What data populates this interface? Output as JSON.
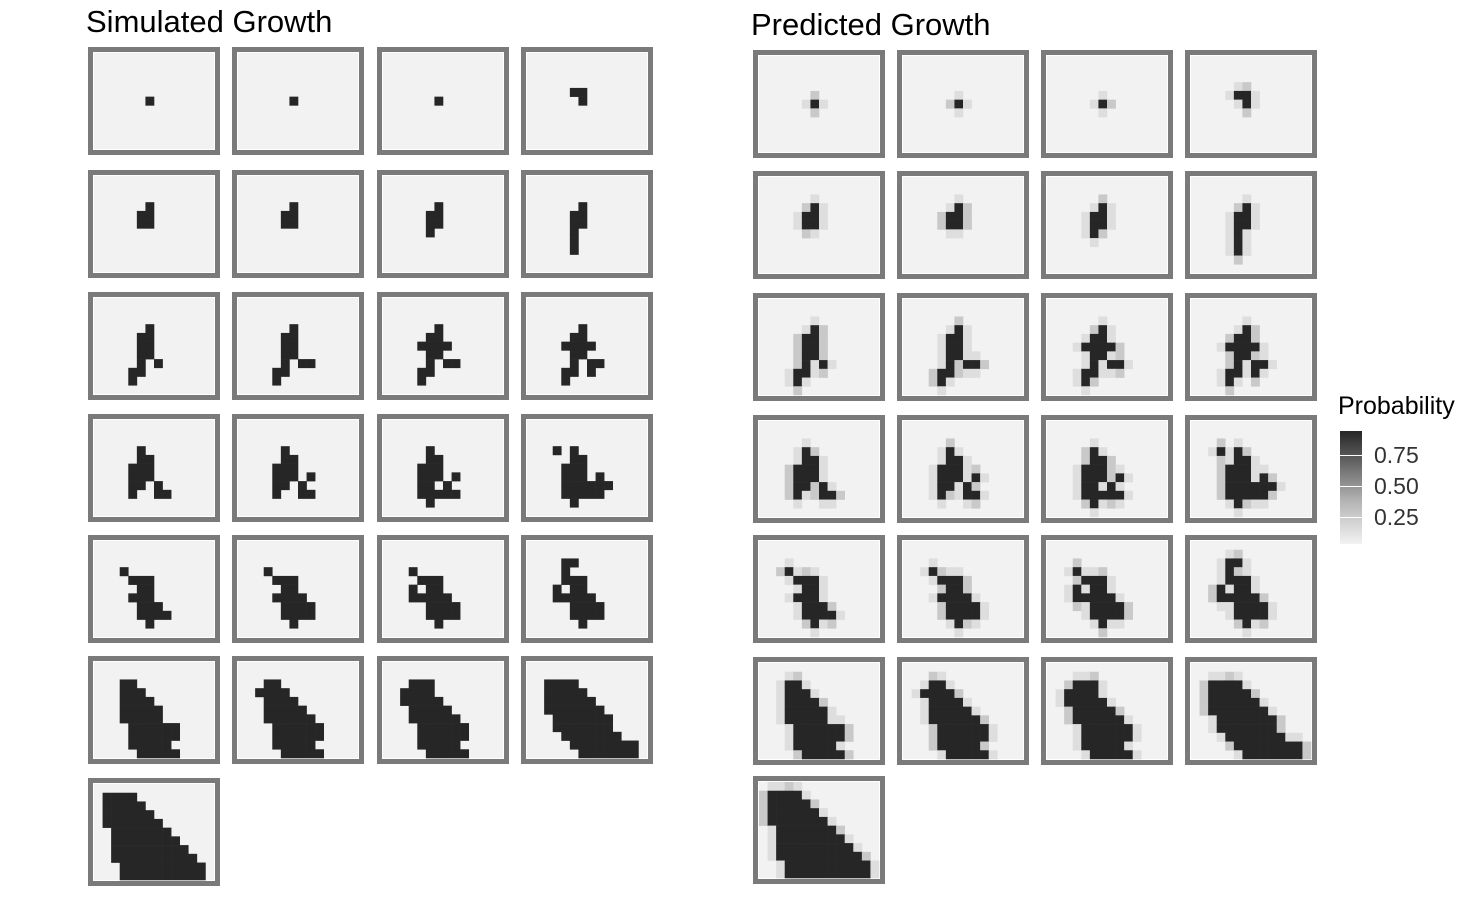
{
  "chart_data": [
    {
      "type": "heatmap",
      "title": "Simulated Growth",
      "facets": 25,
      "grid": "14 x 11 cells per facet",
      "value_range": [
        0,
        1
      ],
      "colors": {
        "low": "#f2f2f2",
        "high": "#262626",
        "frame": "#7a7a7a"
      },
      "panels": [
        [
          [
            6,
            5,
            6,
            5
          ]
        ],
        [
          [
            6,
            5,
            6,
            5
          ]
        ],
        [
          [
            6,
            5,
            6,
            5
          ]
        ],
        [
          [
            6,
            5,
            6,
            5
          ],
          [
            5,
            4,
            6,
            4
          ]
        ],
        [
          [
            5,
            4,
            6,
            4
          ],
          [
            6,
            3,
            6,
            3
          ],
          [
            5,
            5,
            6,
            5
          ]
        ],
        [
          [
            5,
            4,
            6,
            4
          ],
          [
            6,
            3,
            6,
            3
          ],
          [
            5,
            5,
            6,
            5
          ]
        ],
        [
          [
            5,
            4,
            6,
            4
          ],
          [
            6,
            3,
            6,
            3
          ],
          [
            5,
            5,
            6,
            5
          ],
          [
            5,
            6,
            5,
            6
          ]
        ],
        [
          [
            5,
            4,
            6,
            4
          ],
          [
            6,
            3,
            6,
            3
          ],
          [
            5,
            5,
            6,
            5
          ],
          [
            5,
            6,
            5,
            6
          ],
          [
            5,
            7,
            5,
            7
          ],
          [
            5,
            8,
            5,
            8
          ]
        ],
        [
          [
            5,
            4,
            6,
            4
          ],
          [
            6,
            3,
            6,
            3
          ],
          [
            5,
            5,
            6,
            5
          ],
          [
            5,
            6,
            5,
            6
          ],
          [
            5,
            7,
            5,
            7
          ],
          [
            4,
            8,
            5,
            8
          ],
          [
            4,
            9,
            4,
            9
          ],
          [
            6,
            6,
            6,
            6
          ],
          [
            7,
            7,
            7,
            7
          ]
        ],
        [
          [
            5,
            4,
            6,
            4
          ],
          [
            6,
            3,
            6,
            3
          ],
          [
            5,
            5,
            6,
            5
          ],
          [
            5,
            6,
            5,
            6
          ],
          [
            5,
            7,
            5,
            7
          ],
          [
            4,
            8,
            5,
            8
          ],
          [
            4,
            9,
            4,
            9
          ],
          [
            6,
            6,
            6,
            6
          ],
          [
            7,
            7,
            8,
            7
          ]
        ],
        [
          [
            5,
            4,
            6,
            4
          ],
          [
            6,
            3,
            6,
            3
          ],
          [
            4,
            5,
            7,
            5
          ],
          [
            5,
            6,
            6,
            6
          ],
          [
            5,
            7,
            5,
            7
          ],
          [
            4,
            8,
            5,
            8
          ],
          [
            4,
            9,
            4,
            9
          ],
          [
            6,
            6,
            6,
            6
          ],
          [
            7,
            7,
            8,
            7
          ]
        ],
        [
          [
            5,
            4,
            6,
            4
          ],
          [
            6,
            3,
            6,
            3
          ],
          [
            4,
            5,
            7,
            5
          ],
          [
            5,
            6,
            6,
            6
          ],
          [
            5,
            7,
            5,
            7
          ],
          [
            4,
            8,
            5,
            8
          ],
          [
            4,
            9,
            4,
            9
          ],
          [
            6,
            6,
            6,
            6
          ],
          [
            7,
            7,
            8,
            7
          ],
          [
            7,
            8,
            7,
            8
          ]
        ],
        [
          [
            5,
            3,
            5,
            3
          ],
          [
            5,
            4,
            6,
            4
          ],
          [
            4,
            5,
            6,
            5
          ],
          [
            4,
            6,
            4,
            6
          ],
          [
            5,
            6,
            6,
            6
          ],
          [
            4,
            7,
            5,
            7
          ],
          [
            4,
            8,
            4,
            8
          ],
          [
            7,
            7,
            7,
            7
          ],
          [
            7,
            8,
            8,
            8
          ]
        ],
        [
          [
            5,
            3,
            5,
            3
          ],
          [
            5,
            4,
            6,
            4
          ],
          [
            4,
            5,
            6,
            5
          ],
          [
            4,
            6,
            4,
            6
          ],
          [
            5,
            6,
            6,
            6
          ],
          [
            4,
            7,
            5,
            7
          ],
          [
            4,
            8,
            4,
            8
          ],
          [
            7,
            7,
            7,
            7
          ],
          [
            7,
            8,
            8,
            8
          ],
          [
            8,
            6,
            8,
            6
          ]
        ],
        [
          [
            5,
            3,
            5,
            3
          ],
          [
            5,
            4,
            6,
            4
          ],
          [
            4,
            5,
            6,
            5
          ],
          [
            4,
            6,
            4,
            6
          ],
          [
            5,
            6,
            6,
            6
          ],
          [
            4,
            7,
            5,
            7
          ],
          [
            4,
            8,
            5,
            8
          ],
          [
            7,
            7,
            7,
            7
          ],
          [
            7,
            8,
            8,
            8
          ],
          [
            8,
            6,
            8,
            6
          ],
          [
            6,
            8,
            6,
            8
          ],
          [
            5,
            9,
            5,
            9
          ]
        ],
        [
          [
            5,
            3,
            5,
            3
          ],
          [
            5,
            4,
            6,
            4
          ],
          [
            4,
            5,
            6,
            5
          ],
          [
            4,
            6,
            4,
            6
          ],
          [
            5,
            6,
            6,
            6
          ],
          [
            4,
            7,
            5,
            7
          ],
          [
            4,
            8,
            5,
            8
          ],
          [
            7,
            7,
            7,
            7
          ],
          [
            7,
            8,
            8,
            8
          ],
          [
            8,
            6,
            8,
            6
          ],
          [
            6,
            8,
            6,
            8
          ],
          [
            5,
            9,
            5,
            9
          ],
          [
            3,
            3,
            3,
            3
          ],
          [
            6,
            7,
            6,
            7
          ],
          [
            8,
            7,
            9,
            7
          ]
        ],
        [
          [
            3,
            3,
            3,
            3
          ],
          [
            4,
            4,
            6,
            4
          ],
          [
            5,
            5,
            6,
            5
          ],
          [
            4,
            6,
            6,
            6
          ],
          [
            5,
            7,
            7,
            7
          ],
          [
            5,
            8,
            7,
            8
          ],
          [
            6,
            9,
            6,
            9
          ],
          [
            8,
            8,
            8,
            8
          ]
        ],
        [
          [
            3,
            3,
            3,
            3
          ],
          [
            4,
            4,
            6,
            4
          ],
          [
            5,
            5,
            6,
            5
          ],
          [
            4,
            6,
            7,
            6
          ],
          [
            5,
            7,
            7,
            7
          ],
          [
            5,
            8,
            7,
            8
          ],
          [
            6,
            9,
            6,
            9
          ],
          [
            8,
            8,
            8,
            8
          ],
          [
            8,
            7,
            8,
            7
          ]
        ],
        [
          [
            3,
            3,
            3,
            3
          ],
          [
            4,
            4,
            6,
            4
          ],
          [
            5,
            5,
            6,
            5
          ],
          [
            4,
            6,
            7,
            6
          ],
          [
            5,
            7,
            7,
            7
          ],
          [
            5,
            8,
            7,
            8
          ],
          [
            6,
            9,
            6,
            9
          ],
          [
            8,
            8,
            8,
            8
          ],
          [
            8,
            7,
            8,
            7
          ],
          [
            3,
            5,
            3,
            5
          ],
          [
            3,
            6,
            3,
            6
          ]
        ],
        [
          [
            4,
            3,
            4,
            3
          ],
          [
            4,
            4,
            6,
            4
          ],
          [
            5,
            5,
            6,
            5
          ],
          [
            4,
            6,
            7,
            6
          ],
          [
            5,
            7,
            7,
            7
          ],
          [
            5,
            8,
            7,
            8
          ],
          [
            6,
            9,
            6,
            9
          ],
          [
            8,
            8,
            8,
            8
          ],
          [
            8,
            7,
            8,
            7
          ],
          [
            3,
            5,
            3,
            5
          ],
          [
            3,
            6,
            3,
            6
          ],
          [
            4,
            2,
            5,
            2
          ]
        ],
        [
          [
            3,
            3,
            5,
            3
          ],
          [
            3,
            4,
            6,
            4
          ],
          [
            3,
            5,
            7,
            5
          ],
          [
            3,
            6,
            7,
            6
          ],
          [
            4,
            7,
            9,
            7
          ],
          [
            4,
            8,
            9,
            8
          ],
          [
            4,
            9,
            8,
            9
          ],
          [
            5,
            10,
            9,
            10
          ],
          [
            3,
            2,
            4,
            2
          ]
        ],
        [
          [
            3,
            3,
            5,
            3
          ],
          [
            3,
            4,
            6,
            4
          ],
          [
            3,
            5,
            7,
            5
          ],
          [
            3,
            6,
            8,
            6
          ],
          [
            4,
            7,
            9,
            7
          ],
          [
            4,
            8,
            9,
            8
          ],
          [
            4,
            9,
            8,
            9
          ],
          [
            5,
            10,
            9,
            10
          ],
          [
            3,
            2,
            4,
            2
          ],
          [
            2,
            3,
            2,
            3
          ]
        ],
        [
          [
            3,
            3,
            5,
            3
          ],
          [
            3,
            4,
            6,
            4
          ],
          [
            3,
            5,
            7,
            5
          ],
          [
            3,
            6,
            8,
            6
          ],
          [
            4,
            7,
            9,
            7
          ],
          [
            4,
            8,
            9,
            8
          ],
          [
            4,
            9,
            8,
            9
          ],
          [
            5,
            10,
            9,
            10
          ],
          [
            3,
            2,
            4,
            2
          ],
          [
            2,
            3,
            2,
            3
          ],
          [
            5,
            2,
            5,
            2
          ],
          [
            2,
            4,
            2,
            4
          ]
        ],
        [
          [
            2,
            2,
            5,
            2
          ],
          [
            2,
            3,
            6,
            3
          ],
          [
            2,
            4,
            7,
            4
          ],
          [
            2,
            5,
            8,
            5
          ],
          [
            3,
            6,
            9,
            6
          ],
          [
            3,
            7,
            9,
            7
          ],
          [
            4,
            8,
            10,
            8
          ],
          [
            5,
            9,
            12,
            9
          ],
          [
            6,
            10,
            12,
            10
          ],
          [
            7,
            11,
            12,
            11
          ]
        ],
        [
          [
            1,
            1,
            4,
            1
          ],
          [
            1,
            2,
            5,
            2
          ],
          [
            1,
            3,
            6,
            3
          ],
          [
            1,
            4,
            7,
            4
          ],
          [
            2,
            5,
            8,
            5
          ],
          [
            2,
            6,
            9,
            6
          ],
          [
            2,
            7,
            10,
            7
          ],
          [
            2,
            8,
            11,
            8
          ],
          [
            3,
            9,
            12,
            9
          ],
          [
            3,
            10,
            12,
            10
          ],
          [
            5,
            11,
            11,
            11
          ]
        ]
      ]
    },
    {
      "type": "heatmap",
      "title": "Predicted Growth",
      "facets": 25,
      "grid": "14 x 11 cells per facet",
      "value_range": [
        0,
        1
      ],
      "colors": {
        "low": "#f2f2f2",
        "high": "#262626",
        "frame": "#7a7a7a"
      },
      "legend": {
        "title": "Probability",
        "ticks": [
          0.75,
          0.5,
          0.25
        ],
        "tick_labels": [
          "0.75",
          "0.50",
          "0.25"
        ],
        "position": "right"
      },
      "edge_value": 0.4
    }
  ],
  "labels": {
    "left_title": "Simulated Growth",
    "right_title": "Predicted Growth",
    "legend_title": "Probability",
    "tick_075": "0.75",
    "tick_050": "0.50",
    "tick_025": "0.25"
  }
}
